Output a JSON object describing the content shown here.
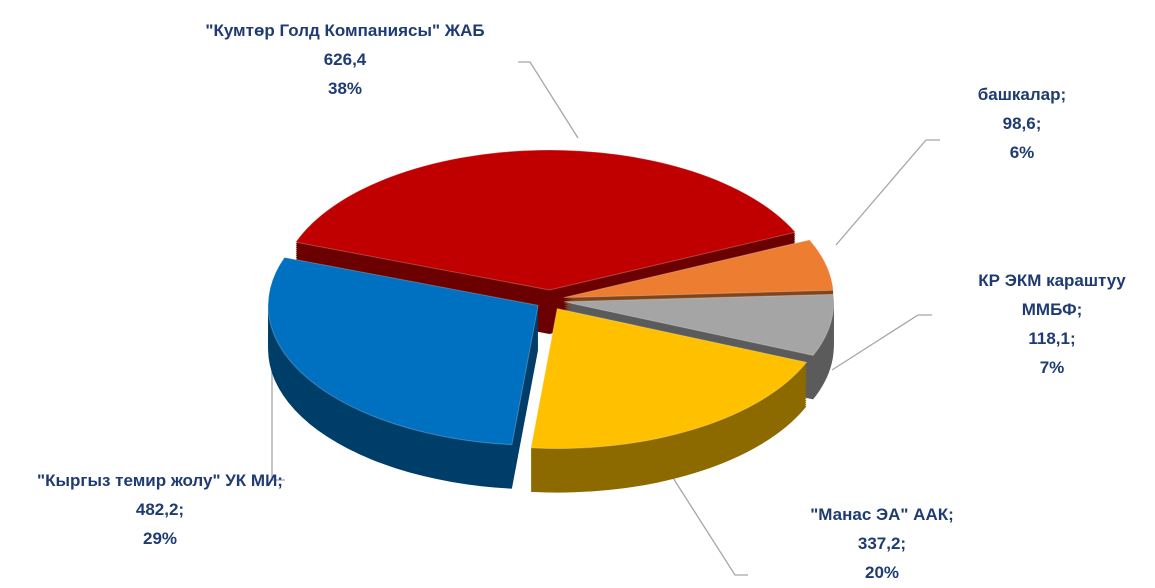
{
  "chart_data": {
    "type": "pie",
    "categories": [
      "\"Кумтөр Голд Компаниясы\" ЖАБ",
      "башкалар;",
      "КР ЭКМ караштуу ММБФ;",
      "\"Манас ЭА\" ААК;",
      "\"Кыргыз темир жолу\" УК МИ;"
    ],
    "values": [
      626.4,
      98.6,
      118.1,
      337.2,
      482.2
    ],
    "value_labels": [
      "626,4",
      "98,6;",
      "118,1;",
      "337,2;",
      "482,2;"
    ],
    "percents": [
      38,
      6,
      7,
      20,
      29
    ],
    "percent_labels": [
      "38%",
      "6%",
      "7%",
      "20%",
      "29%"
    ],
    "colors": [
      "#c00000",
      "#ed7d31",
      "#a5a5a5",
      "#ffc000",
      "#0070c0"
    ]
  }
}
